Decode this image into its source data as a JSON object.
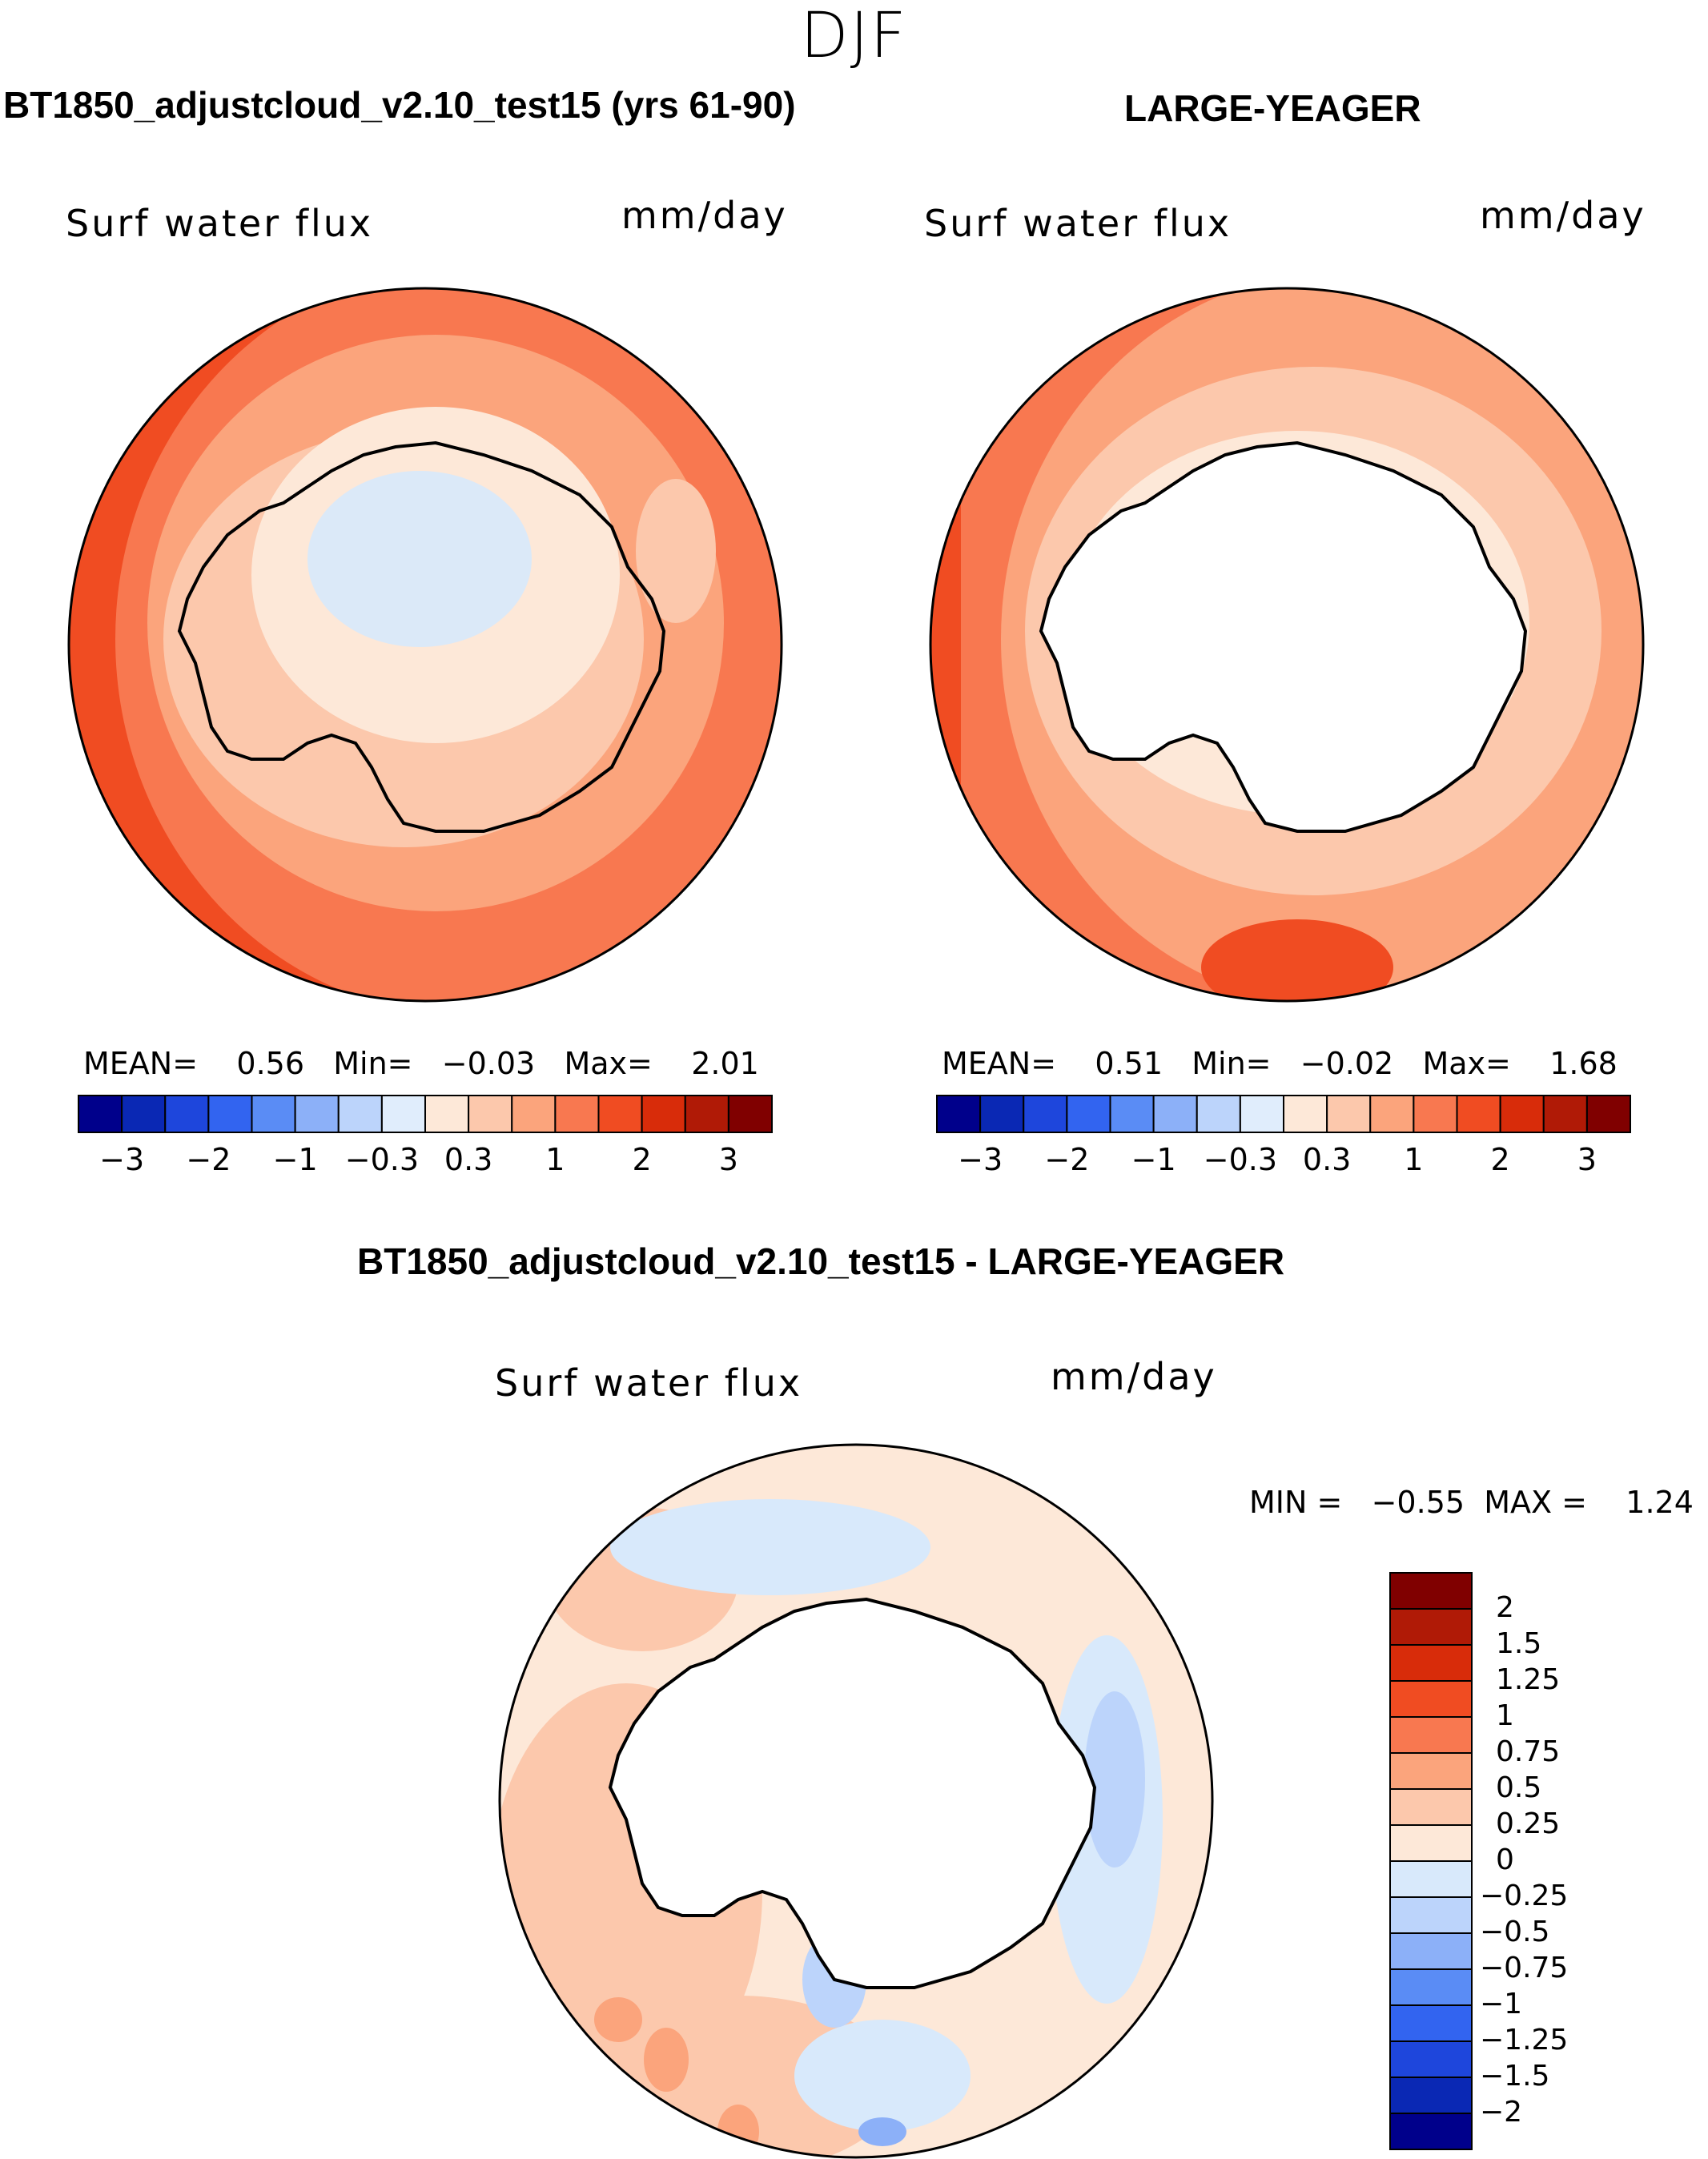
{
  "figure": {
    "season": "DJF",
    "panels": [
      {
        "case_title": "BT1850_adjustcloud_v2.10_test15 (yrs 61-90)",
        "variable": "Surf water flux",
        "units": "mm/day",
        "stats": {
          "mean_label": "MEAN=",
          "mean": "0.56",
          "min_label": "Min=",
          "min": "−0.03",
          "max_label": "Max=",
          "max": "2.01"
        },
        "colorbar_ticks": [
          "−3",
          "−2",
          "−1",
          "−0.3",
          "0.3",
          "1",
          "2",
          "3"
        ]
      },
      {
        "case_title": "LARGE-YEAGER",
        "variable": "Surf water flux",
        "units": "mm/day",
        "stats": {
          "mean_label": "MEAN=",
          "mean": "0.51",
          "min_label": "Min=",
          "min": "−0.02",
          "max_label": "Max=",
          "max": "1.68"
        },
        "colorbar_ticks": [
          "−3",
          "−2",
          "−1",
          "−0.3",
          "0.3",
          "1",
          "2",
          "3"
        ]
      },
      {
        "case_title": "BT1850_adjustcloud_v2.10_test15 - LARGE-YEAGER",
        "variable": "Surf water flux",
        "units": "mm/day",
        "stats": {
          "min_label": "MIN =",
          "min": "−0.55",
          "max_label": "MAX =",
          "max": "1.24"
        },
        "colorbar_ticks": [
          "2",
          "1.5",
          "1.25",
          "1",
          "0.75",
          "0.5",
          "0.25",
          "0",
          "−0.25",
          "−0.5",
          "−0.75",
          "−1",
          "−1.25",
          "−1.5",
          "−2"
        ]
      }
    ],
    "colors": {
      "main_scale": [
        "#00008b",
        "#0a28b4",
        "#1e46dc",
        "#3264f0",
        "#5a8cf5",
        "#8cb0f8",
        "#bcd4fb",
        "#e0edfc",
        "#fde8d8",
        "#fcc8ac",
        "#fba47c",
        "#f87850",
        "#f04c22",
        "#d82c0a",
        "#b01a06",
        "#800000"
      ],
      "diff_scale": [
        "#00008b",
        "#0a28b4",
        "#1e46dc",
        "#3264f0",
        "#5a8cf5",
        "#8cb0f8",
        "#bcd4fb",
        "#d8e9fb",
        "#fde8d8",
        "#fcc8ac",
        "#fba47c",
        "#f87850",
        "#f04c22",
        "#d82c0a",
        "#b01a06",
        "#800000"
      ]
    }
  },
  "chart_data": [
    {
      "type": "heatmap",
      "title": "BT1850_adjustcloud_v2.10_test15 (yrs 61-90)",
      "variable": "Surf water flux",
      "units": "mm/day",
      "projection": "south polar stereographic",
      "mean": 0.56,
      "min": -0.03,
      "max": 2.01,
      "contour_levels": [
        -3,
        -2.5,
        -2,
        -1.5,
        -1,
        -0.5,
        -0.3,
        0,
        0.3,
        0.5,
        1,
        1.5,
        2,
        2.5,
        3
      ],
      "colorbar_labels": [
        "−3",
        "−2",
        "−1",
        "−0.3",
        "0.3",
        "1",
        "2",
        "3"
      ]
    },
    {
      "type": "heatmap",
      "title": "LARGE-YEAGER",
      "variable": "Surf water flux",
      "units": "mm/day",
      "projection": "south polar stereographic",
      "mean": 0.51,
      "min": -0.02,
      "max": 1.68,
      "contour_levels": [
        -3,
        -2.5,
        -2,
        -1.5,
        -1,
        -0.5,
        -0.3,
        0,
        0.3,
        0.5,
        1,
        1.5,
        2,
        2.5,
        3
      ],
      "colorbar_labels": [
        "−3",
        "−2",
        "−1",
        "−0.3",
        "0.3",
        "1",
        "2",
        "3"
      ]
    },
    {
      "type": "heatmap",
      "title": "BT1850_adjustcloud_v2.10_test15 - LARGE-YEAGER",
      "variable": "Surf water flux",
      "units": "mm/day",
      "projection": "south polar stereographic",
      "min": -0.55,
      "max": 1.24,
      "contour_levels": [
        -2,
        -1.5,
        -1.25,
        -1,
        -0.75,
        -0.5,
        -0.25,
        0,
        0.25,
        0.5,
        0.75,
        1,
        1.25,
        1.5,
        2
      ],
      "colorbar_labels": [
        "2",
        "1.5",
        "1.25",
        "1",
        "0.75",
        "0.5",
        "0.25",
        "0",
        "−0.25",
        "−0.5",
        "−0.75",
        "−1",
        "−1.25",
        "−1.5",
        "−2"
      ]
    }
  ]
}
